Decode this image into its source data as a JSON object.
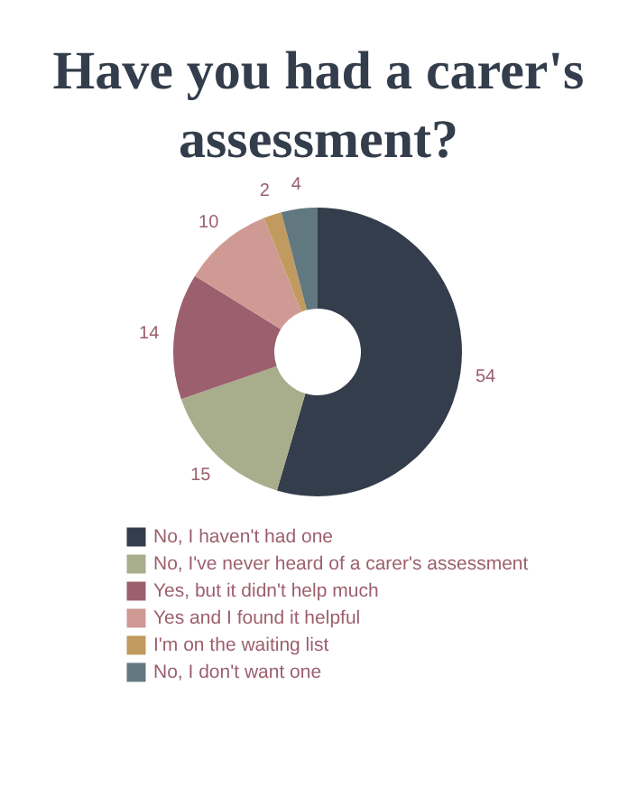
{
  "chart_data": {
    "type": "donut",
    "title": "Have you had a carer's assessment?",
    "categories": [
      "No, I haven't had one",
      "No, I've never heard of a carer's assessment",
      "Yes, but it didn't help much",
      "Yes and I found it helpful",
      "I'm on the waiting list",
      "No, I don't want one"
    ],
    "values": [
      54,
      15,
      14,
      10,
      2,
      4
    ],
    "colors": [
      "#333d4b",
      "#a8ae8c",
      "#9c5f6e",
      "#d09a94",
      "#c09a5e",
      "#627880"
    ],
    "data_labels": true,
    "legend": "bottom left"
  }
}
